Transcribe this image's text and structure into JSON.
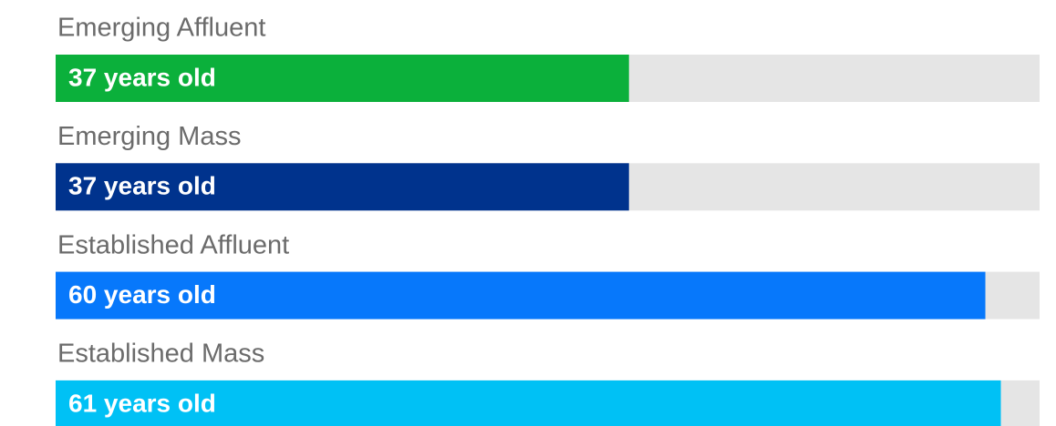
{
  "chart_data": {
    "type": "bar",
    "orientation": "horizontal",
    "categories": [
      "Emerging Affluent",
      "Emerging Mass",
      "Established Affluent",
      "Established Mass"
    ],
    "values": [
      37,
      37,
      60,
      61
    ],
    "value_labels": [
      "37 years old",
      "37 years old",
      "60 years old",
      "61 years old"
    ],
    "colors": [
      "#0bb03b",
      "#00338d",
      "#0778fb",
      "#00c1f5"
    ],
    "track_color": "#e5e5e5",
    "xlim": [
      0,
      63.5
    ]
  }
}
